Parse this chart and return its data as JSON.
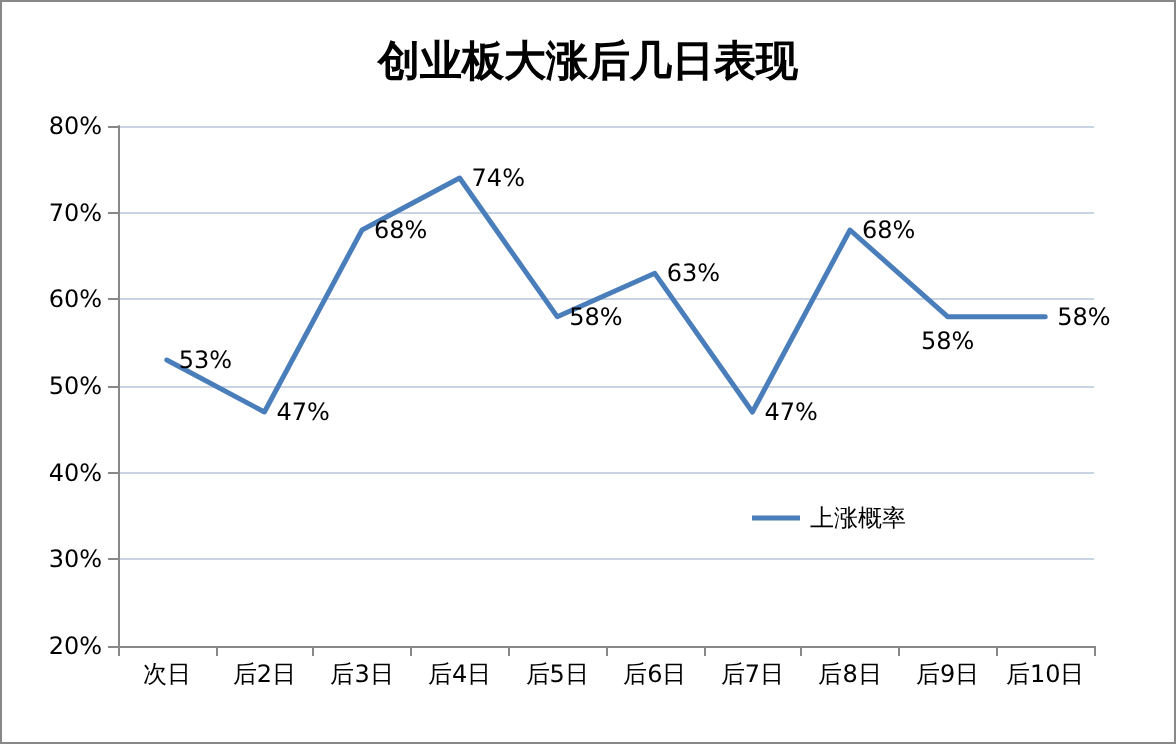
{
  "chart_data": {
    "type": "line",
    "title": "创业板大涨后几日表现",
    "categories": [
      "次日",
      "后2日",
      "后3日",
      "后4日",
      "后5日",
      "后6日",
      "后7日",
      "后8日",
      "后9日",
      "后10日"
    ],
    "series": [
      {
        "name": "上涨概率",
        "color": "#4a7ebb",
        "values": [
          53,
          47,
          68,
          74,
          58,
          63,
          47,
          68,
          58,
          58
        ],
        "value_labels": [
          "53%",
          "47%",
          "68%",
          "74%",
          "58%",
          "63%",
          "47%",
          "68%",
          "58%",
          "58%"
        ]
      }
    ],
    "ylim": [
      20,
      80
    ],
    "yticks": [
      {
        "value": 20,
        "label": "20%"
      },
      {
        "value": 30,
        "label": "30%"
      },
      {
        "value": 40,
        "label": "40%"
      },
      {
        "value": 50,
        "label": "50%"
      },
      {
        "value": 60,
        "label": "60%"
      },
      {
        "value": 70,
        "label": "70%"
      },
      {
        "value": 80,
        "label": "80%"
      }
    ],
    "grid": "y",
    "legend": "right",
    "marker": "none",
    "line_style": "solid"
  }
}
